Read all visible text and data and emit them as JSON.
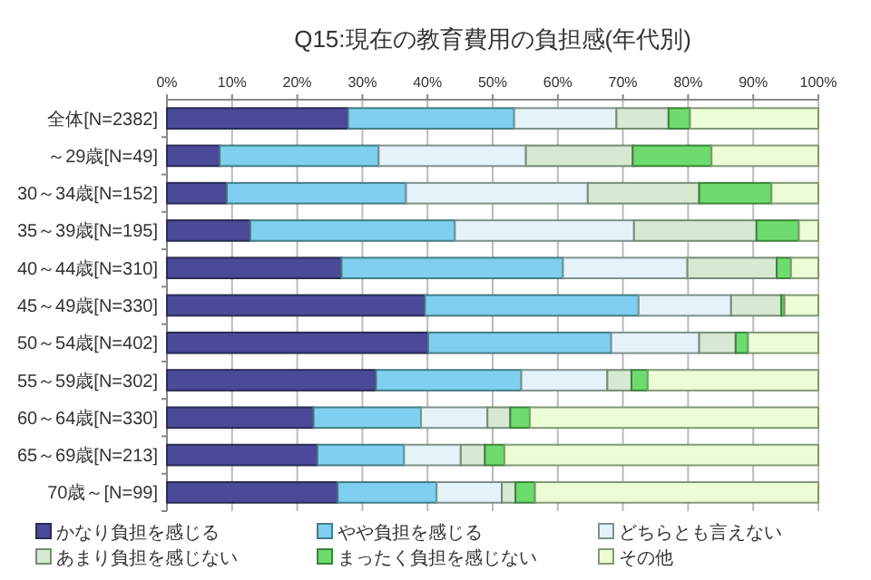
{
  "chart_data": {
    "type": "bar",
    "orientation": "horizontal",
    "stacked": true,
    "title": "Q15:現在の教育費用の負担感(年代別)",
    "categories": [
      "全体[N=2382]",
      "～29歳[N=49]",
      "30～34歳[N=152]",
      "35～39歳[N=195]",
      "40～44歳[N=310]",
      "45～49歳[N=330]",
      "50～54歳[N=402]",
      "55～59歳[N=302]",
      "60～64歳[N=330]",
      "65～69歳[N=213]",
      "70歳～[N=99]"
    ],
    "series": [
      {
        "name": "かなり負担を感じる",
        "color": "#4a4a98",
        "values": [
          27.8,
          8.1,
          9.2,
          12.8,
          26.8,
          39.6,
          40.1,
          32.1,
          22.5,
          23.1,
          26.2
        ]
      },
      {
        "name": "やや負担を感じる",
        "color": "#7ecff0",
        "values": [
          25.5,
          24.4,
          27.5,
          31.4,
          34.0,
          32.8,
          28.1,
          22.3,
          16.5,
          13.3,
          15.2
        ]
      },
      {
        "name": "どちらとも言えない",
        "color": "#e4f3fa",
        "values": [
          15.7,
          22.6,
          27.9,
          27.5,
          19.1,
          14.2,
          13.5,
          13.2,
          10.2,
          8.7,
          10.0
        ]
      },
      {
        "name": "あまり負担を感じない",
        "color": "#d7e9d3",
        "values": [
          8.0,
          16.4,
          17.1,
          18.8,
          13.7,
          7.7,
          5.6,
          3.7,
          3.5,
          3.7,
          2.1
        ]
      },
      {
        "name": "まったく負担を感じない",
        "color": "#6ddb6d",
        "values": [
          3.3,
          12.1,
          11.1,
          6.5,
          2.2,
          0.5,
          1.9,
          2.5,
          3.0,
          3.0,
          3.0
        ]
      },
      {
        "name": "その他",
        "color": "#ecfdd6",
        "values": [
          19.7,
          16.4,
          7.2,
          3.0,
          4.2,
          5.2,
          10.8,
          26.2,
          44.3,
          48.2,
          43.5
        ]
      }
    ],
    "xlim": [
      0,
      100
    ],
    "xticks": [
      {
        "value": 0,
        "label": "0%"
      },
      {
        "value": 10,
        "label": "10%"
      },
      {
        "value": 20,
        "label": "20%"
      },
      {
        "value": 30,
        "label": "30%"
      },
      {
        "value": 40,
        "label": "40%"
      },
      {
        "value": 50,
        "label": "50%"
      },
      {
        "value": 60,
        "label": "60%"
      },
      {
        "value": 70,
        "label": "70%"
      },
      {
        "value": 80,
        "label": "80%"
      },
      {
        "value": 90,
        "label": "90%"
      },
      {
        "value": 100,
        "label": "100%"
      }
    ],
    "grid": "x",
    "legend": "bottom"
  }
}
